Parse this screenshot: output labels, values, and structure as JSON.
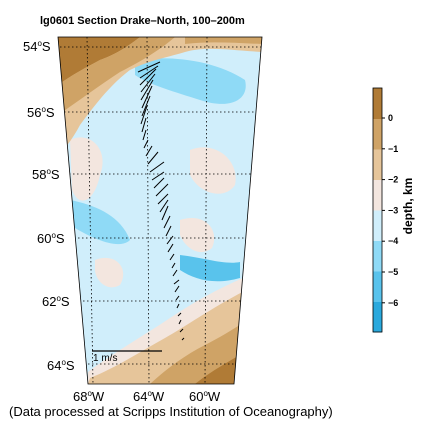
{
  "title": "lg0601 Section Drake–North, 100–200m",
  "lat_labels": [
    {
      "deg": "54",
      "hemi": "S"
    },
    {
      "deg": "56",
      "hemi": "S"
    },
    {
      "deg": "58",
      "hemi": "S"
    },
    {
      "deg": "60",
      "hemi": "S"
    },
    {
      "deg": "62",
      "hemi": "S"
    },
    {
      "deg": "64",
      "hemi": "S"
    }
  ],
  "lon_labels": [
    {
      "deg": "68",
      "hemi": "W"
    },
    {
      "deg": "64",
      "hemi": "W"
    },
    {
      "deg": "60",
      "hemi": "W"
    }
  ],
  "scale_label": "1 m/s",
  "colorbar": {
    "label": "depth, km",
    "ticks": [
      "0",
      "−1",
      "−2",
      "−3",
      "−4",
      "−5",
      "−6"
    ],
    "colors": [
      "#2aa9dd",
      "#59c3ec",
      "#8fdaf6",
      "#d0eefb",
      "#f3e6df",
      "#e6c59a",
      "#cfa366",
      "#b07b36"
    ]
  },
  "credit": "(Data processed at Scripps Institution of Oceanography)"
}
